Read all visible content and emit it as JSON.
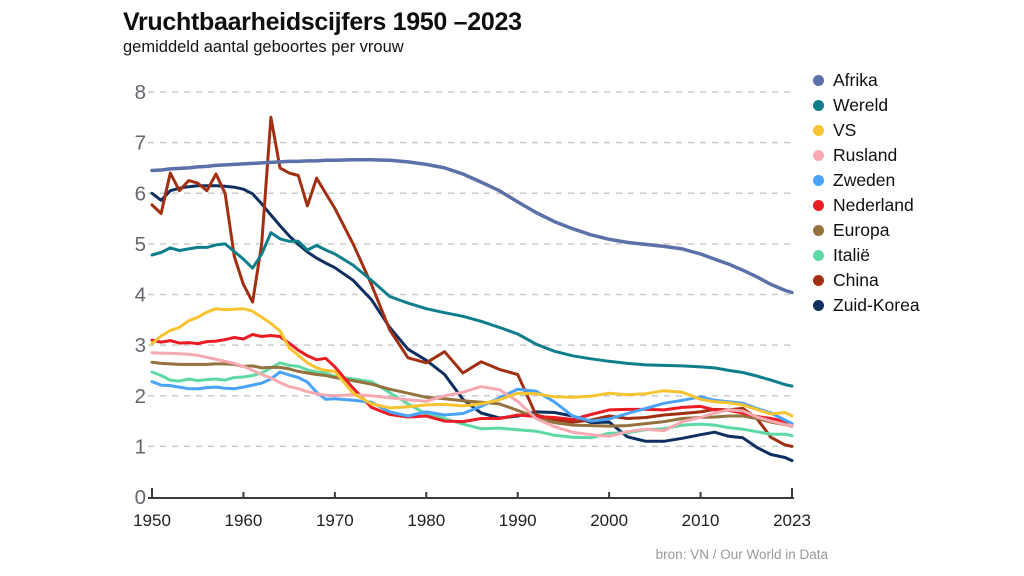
{
  "chart": {
    "title": "Vruchtbaarheidscijfers 1950 –2023",
    "subtitle": "gemiddeld aantal geboortes per vrouw",
    "source": "bron: VN / Our World in Data"
  },
  "chart_data": {
    "type": "line",
    "title": "Vruchtbaarheidscijfers 1950 –2023",
    "subtitle": "gemiddeld aantal geboortes per vrouw",
    "source": "bron: VN / Our World in Data",
    "xlabel": "",
    "ylabel": "gemiddeld aantal geboortes per vrouw",
    "ylim": [
      0,
      8
    ],
    "y_ticks": [
      0,
      1,
      2,
      3,
      4,
      5,
      6,
      7,
      8
    ],
    "x_ticks": [
      1950,
      1960,
      1970,
      1980,
      1990,
      2000,
      2010,
      2023
    ],
    "x_tick_labels": [
      "1950",
      "1960",
      "1970",
      "1980",
      "1990",
      "2000",
      "2010",
      "2023"
    ],
    "grid": "horizontal-dashed",
    "legend_position": "right",
    "years": [
      1950,
      1951,
      1952,
      1953,
      1954,
      1955,
      1956,
      1957,
      1958,
      1959,
      1960,
      1961,
      1962,
      1963,
      1964,
      1965,
      1966,
      1967,
      1968,
      1969,
      1970,
      1972,
      1974,
      1976,
      1978,
      1980,
      1982,
      1984,
      1986,
      1988,
      1990,
      1992,
      1994,
      1996,
      1998,
      2000,
      2002,
      2004,
      2006,
      2008,
      2010,
      2012,
      2014,
      2016,
      2018,
      2020,
      2022,
      2023
    ],
    "series": [
      {
        "name": "Afrika",
        "color": "#5C70A9",
        "values": [
          6.45,
          6.46,
          6.48,
          6.49,
          6.5,
          6.52,
          6.53,
          6.55,
          6.56,
          6.57,
          6.58,
          6.59,
          6.6,
          6.61,
          6.62,
          6.63,
          6.63,
          6.64,
          6.64,
          6.65,
          6.65,
          6.66,
          6.66,
          6.65,
          6.62,
          6.57,
          6.5,
          6.38,
          6.22,
          6.05,
          5.83,
          5.62,
          5.44,
          5.3,
          5.18,
          5.09,
          5.03,
          4.99,
          4.95,
          4.9,
          4.8,
          4.7,
          4.6,
          4.48,
          4.35,
          4.2,
          4.08,
          4.04
        ]
      },
      {
        "name": "Wereld",
        "color": "#0F7E8C",
        "values": [
          4.78,
          4.83,
          4.92,
          4.87,
          4.9,
          4.93,
          4.93,
          4.98,
          5.0,
          4.85,
          4.7,
          4.52,
          4.8,
          5.22,
          5.1,
          5.05,
          5.05,
          4.88,
          4.97,
          4.88,
          4.8,
          4.58,
          4.28,
          3.96,
          3.83,
          3.72,
          3.64,
          3.57,
          3.47,
          3.35,
          3.22,
          3.02,
          2.88,
          2.79,
          2.73,
          2.68,
          2.64,
          2.61,
          2.6,
          2.59,
          2.57,
          2.55,
          2.5,
          2.46,
          2.39,
          2.31,
          2.22,
          2.19
        ]
      },
      {
        "name": "VS",
        "color": "#F7C331",
        "values": [
          3.03,
          3.18,
          3.29,
          3.35,
          3.48,
          3.55,
          3.65,
          3.72,
          3.7,
          3.71,
          3.72,
          3.67,
          3.55,
          3.43,
          3.28,
          2.95,
          2.8,
          2.65,
          2.55,
          2.5,
          2.48,
          2.05,
          1.84,
          1.76,
          1.78,
          1.82,
          1.83,
          1.8,
          1.84,
          1.92,
          2.05,
          2.04,
          1.98,
          1.97,
          1.99,
          2.05,
          2.02,
          2.04,
          2.1,
          2.07,
          1.93,
          1.88,
          1.86,
          1.82,
          1.73,
          1.64,
          1.67,
          1.6
        ]
      },
      {
        "name": "Rusland",
        "color": "#F6A9B1",
        "values": [
          2.85,
          2.84,
          2.84,
          2.83,
          2.82,
          2.8,
          2.76,
          2.72,
          2.68,
          2.64,
          2.58,
          2.5,
          2.42,
          2.35,
          2.26,
          2.18,
          2.14,
          2.08,
          2.04,
          2.01,
          2.0,
          2.02,
          2.0,
          1.96,
          1.92,
          1.89,
          2.0,
          2.07,
          2.18,
          2.12,
          1.89,
          1.55,
          1.39,
          1.28,
          1.23,
          1.2,
          1.29,
          1.34,
          1.31,
          1.49,
          1.57,
          1.66,
          1.72,
          1.7,
          1.58,
          1.5,
          1.43,
          1.41
        ]
      },
      {
        "name": "Zweden",
        "color": "#4AA3F7",
        "values": [
          2.28,
          2.21,
          2.2,
          2.17,
          2.14,
          2.14,
          2.16,
          2.17,
          2.15,
          2.14,
          2.17,
          2.21,
          2.25,
          2.33,
          2.47,
          2.41,
          2.36,
          2.27,
          2.07,
          1.93,
          1.94,
          1.91,
          1.87,
          1.68,
          1.6,
          1.68,
          1.62,
          1.65,
          1.79,
          1.96,
          2.13,
          2.09,
          1.88,
          1.6,
          1.5,
          1.54,
          1.65,
          1.75,
          1.85,
          1.91,
          1.98,
          1.91,
          1.88,
          1.85,
          1.75,
          1.66,
          1.52,
          1.45
        ]
      },
      {
        "name": "Nederland",
        "color": "#EB1C24",
        "values": [
          3.1,
          3.06,
          3.09,
          3.04,
          3.05,
          3.03,
          3.07,
          3.08,
          3.11,
          3.15,
          3.12,
          3.21,
          3.17,
          3.19,
          3.17,
          3.04,
          2.9,
          2.79,
          2.71,
          2.74,
          2.57,
          2.15,
          1.77,
          1.63,
          1.58,
          1.6,
          1.5,
          1.49,
          1.55,
          1.55,
          1.62,
          1.59,
          1.57,
          1.53,
          1.63,
          1.72,
          1.73,
          1.73,
          1.72,
          1.77,
          1.79,
          1.72,
          1.71,
          1.66,
          1.59,
          1.55,
          1.49,
          1.43
        ]
      },
      {
        "name": "Europa",
        "color": "#95713D",
        "values": [
          2.66,
          2.64,
          2.63,
          2.62,
          2.62,
          2.62,
          2.62,
          2.63,
          2.63,
          2.62,
          2.58,
          2.59,
          2.55,
          2.56,
          2.56,
          2.53,
          2.48,
          2.45,
          2.42,
          2.4,
          2.36,
          2.3,
          2.23,
          2.13,
          2.05,
          1.97,
          1.94,
          1.9,
          1.87,
          1.84,
          1.71,
          1.57,
          1.47,
          1.42,
          1.41,
          1.4,
          1.41,
          1.45,
          1.49,
          1.55,
          1.57,
          1.58,
          1.6,
          1.6,
          1.55,
          1.48,
          1.43,
          1.4
        ]
      },
      {
        "name": "Italië",
        "color": "#5ED9A6",
        "values": [
          2.47,
          2.4,
          2.31,
          2.29,
          2.33,
          2.3,
          2.32,
          2.33,
          2.31,
          2.36,
          2.37,
          2.4,
          2.45,
          2.55,
          2.65,
          2.6,
          2.58,
          2.51,
          2.47,
          2.45,
          2.38,
          2.33,
          2.28,
          2.06,
          1.84,
          1.64,
          1.55,
          1.44,
          1.35,
          1.36,
          1.33,
          1.3,
          1.22,
          1.18,
          1.17,
          1.26,
          1.27,
          1.33,
          1.35,
          1.42,
          1.44,
          1.42,
          1.37,
          1.34,
          1.29,
          1.24,
          1.24,
          1.21
        ]
      },
      {
        "name": "China",
        "color": "#A13012",
        "values": [
          5.77,
          5.6,
          6.4,
          6.05,
          6.25,
          6.2,
          6.05,
          6.38,
          6.0,
          4.75,
          4.2,
          3.85,
          5.0,
          7.5,
          6.5,
          6.4,
          6.35,
          5.75,
          6.3,
          6.0,
          5.7,
          5.0,
          4.2,
          3.3,
          2.75,
          2.65,
          2.87,
          2.45,
          2.67,
          2.52,
          2.42,
          1.62,
          1.53,
          1.48,
          1.52,
          1.6,
          1.55,
          1.57,
          1.62,
          1.65,
          1.68,
          1.73,
          1.72,
          1.75,
          1.55,
          1.18,
          1.03,
          1.0
        ]
      },
      {
        "name": "Zuid-Korea",
        "color": "#0E2F5F",
        "values": [
          6.0,
          5.86,
          6.05,
          6.1,
          6.13,
          6.15,
          6.15,
          6.15,
          6.14,
          6.12,
          6.08,
          5.99,
          5.79,
          5.57,
          5.36,
          5.16,
          4.99,
          4.84,
          4.72,
          4.62,
          4.53,
          4.28,
          3.9,
          3.35,
          2.92,
          2.7,
          2.42,
          1.93,
          1.66,
          1.56,
          1.6,
          1.68,
          1.67,
          1.6,
          1.47,
          1.48,
          1.19,
          1.1,
          1.1,
          1.16,
          1.23,
          1.28,
          1.2,
          1.17,
          0.98,
          0.84,
          0.78,
          0.72
        ]
      }
    ]
  }
}
